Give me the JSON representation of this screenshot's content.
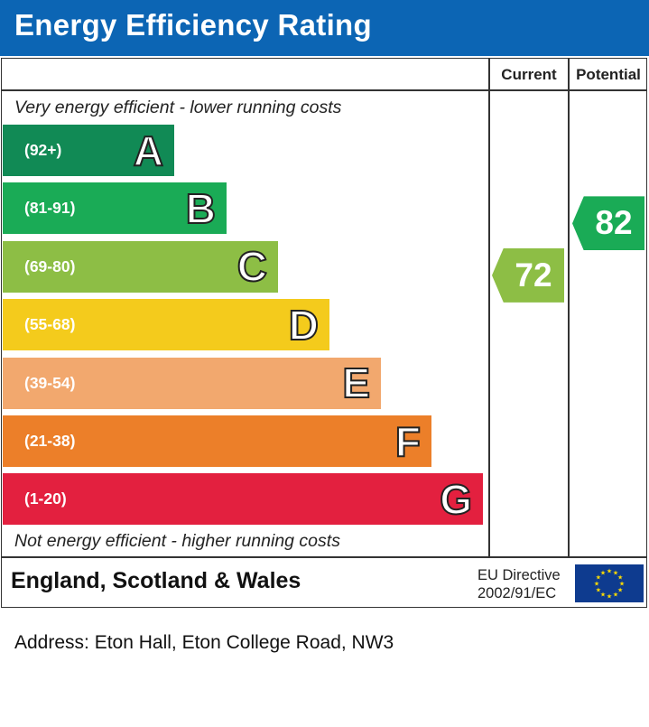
{
  "header": {
    "title": "Energy Efficiency Rating"
  },
  "columns": {
    "current": "Current",
    "potential": "Potential"
  },
  "captions": {
    "top": "Very energy efficient - lower running costs",
    "bottom": "Not energy efficient - higher running costs"
  },
  "chart_data": {
    "type": "bar",
    "title": "Energy Efficiency Rating",
    "categories": [
      "A",
      "B",
      "C",
      "D",
      "E",
      "F",
      "G"
    ],
    "bands": [
      {
        "letter": "A",
        "range": "(92+)",
        "color": "#118a55"
      },
      {
        "letter": "B",
        "range": "(81-91)",
        "color": "#1aab56"
      },
      {
        "letter": "C",
        "range": "(69-80)",
        "color": "#8dbe45"
      },
      {
        "letter": "D",
        "range": "(55-68)",
        "color": "#f4cb1c"
      },
      {
        "letter": "E",
        "range": "(39-54)",
        "color": "#f2a86e"
      },
      {
        "letter": "F",
        "range": "(21-38)",
        "color": "#ec7f29"
      },
      {
        "letter": "G",
        "range": "(1-20)",
        "color": "#e3203f"
      }
    ],
    "current": {
      "value": 72,
      "band": "C",
      "color": "#8dbe45"
    },
    "potential": {
      "value": 82,
      "band": "B",
      "color": "#1aab56"
    }
  },
  "footer": {
    "region": "England, Scotland & Wales",
    "directive_line1": "EU Directive",
    "directive_line2": "2002/91/EC"
  },
  "address": "Address: Eton Hall, Eton College Road, NW3"
}
